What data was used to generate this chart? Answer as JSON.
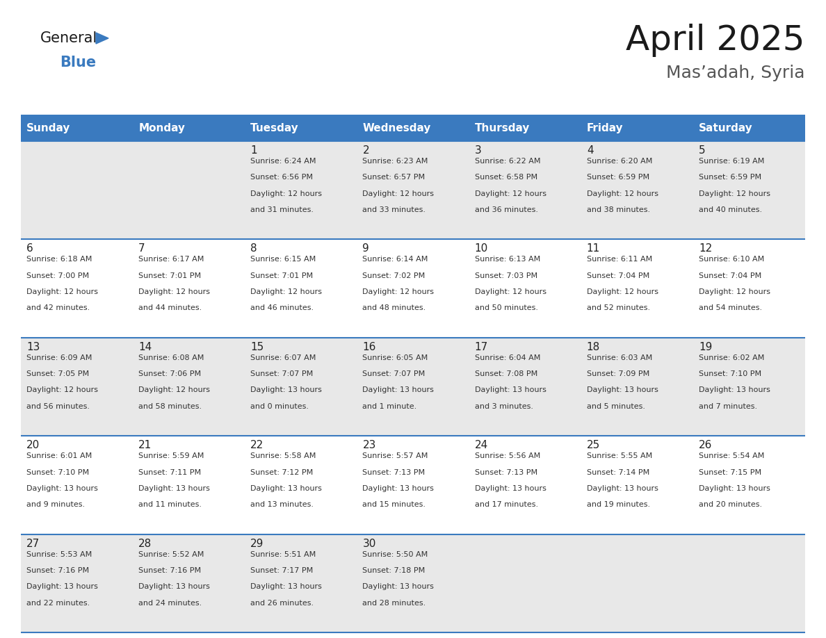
{
  "title": "April 2025",
  "subtitle": "Mas’adah, Syria",
  "header_bg_color": "#3a7abf",
  "header_text_color": "#ffffff",
  "row_bg_even": "#e8e8e8",
  "row_bg_odd": "#ffffff",
  "border_color": "#3a7abf",
  "day_names": [
    "Sunday",
    "Monday",
    "Tuesday",
    "Wednesday",
    "Thursday",
    "Friday",
    "Saturday"
  ],
  "days": [
    {
      "day": 1,
      "col": 2,
      "row": 0,
      "sunrise": "6:24 AM",
      "sunset": "6:56 PM",
      "daylight": "12 hours and 31 minutes."
    },
    {
      "day": 2,
      "col": 3,
      "row": 0,
      "sunrise": "6:23 AM",
      "sunset": "6:57 PM",
      "daylight": "12 hours and 33 minutes."
    },
    {
      "day": 3,
      "col": 4,
      "row": 0,
      "sunrise": "6:22 AM",
      "sunset": "6:58 PM",
      "daylight": "12 hours and 36 minutes."
    },
    {
      "day": 4,
      "col": 5,
      "row": 0,
      "sunrise": "6:20 AM",
      "sunset": "6:59 PM",
      "daylight": "12 hours and 38 minutes."
    },
    {
      "day": 5,
      "col": 6,
      "row": 0,
      "sunrise": "6:19 AM",
      "sunset": "6:59 PM",
      "daylight": "12 hours and 40 minutes."
    },
    {
      "day": 6,
      "col": 0,
      "row": 1,
      "sunrise": "6:18 AM",
      "sunset": "7:00 PM",
      "daylight": "12 hours and 42 minutes."
    },
    {
      "day": 7,
      "col": 1,
      "row": 1,
      "sunrise": "6:17 AM",
      "sunset": "7:01 PM",
      "daylight": "12 hours and 44 minutes."
    },
    {
      "day": 8,
      "col": 2,
      "row": 1,
      "sunrise": "6:15 AM",
      "sunset": "7:01 PM",
      "daylight": "12 hours and 46 minutes."
    },
    {
      "day": 9,
      "col": 3,
      "row": 1,
      "sunrise": "6:14 AM",
      "sunset": "7:02 PM",
      "daylight": "12 hours and 48 minutes."
    },
    {
      "day": 10,
      "col": 4,
      "row": 1,
      "sunrise": "6:13 AM",
      "sunset": "7:03 PM",
      "daylight": "12 hours and 50 minutes."
    },
    {
      "day": 11,
      "col": 5,
      "row": 1,
      "sunrise": "6:11 AM",
      "sunset": "7:04 PM",
      "daylight": "12 hours and 52 minutes."
    },
    {
      "day": 12,
      "col": 6,
      "row": 1,
      "sunrise": "6:10 AM",
      "sunset": "7:04 PM",
      "daylight": "12 hours and 54 minutes."
    },
    {
      "day": 13,
      "col": 0,
      "row": 2,
      "sunrise": "6:09 AM",
      "sunset": "7:05 PM",
      "daylight": "12 hours and 56 minutes."
    },
    {
      "day": 14,
      "col": 1,
      "row": 2,
      "sunrise": "6:08 AM",
      "sunset": "7:06 PM",
      "daylight": "12 hours and 58 minutes."
    },
    {
      "day": 15,
      "col": 2,
      "row": 2,
      "sunrise": "6:07 AM",
      "sunset": "7:07 PM",
      "daylight": "13 hours and 0 minutes."
    },
    {
      "day": 16,
      "col": 3,
      "row": 2,
      "sunrise": "6:05 AM",
      "sunset": "7:07 PM",
      "daylight": "13 hours and 1 minute."
    },
    {
      "day": 17,
      "col": 4,
      "row": 2,
      "sunrise": "6:04 AM",
      "sunset": "7:08 PM",
      "daylight": "13 hours and 3 minutes."
    },
    {
      "day": 18,
      "col": 5,
      "row": 2,
      "sunrise": "6:03 AM",
      "sunset": "7:09 PM",
      "daylight": "13 hours and 5 minutes."
    },
    {
      "day": 19,
      "col": 6,
      "row": 2,
      "sunrise": "6:02 AM",
      "sunset": "7:10 PM",
      "daylight": "13 hours and 7 minutes."
    },
    {
      "day": 20,
      "col": 0,
      "row": 3,
      "sunrise": "6:01 AM",
      "sunset": "7:10 PM",
      "daylight": "13 hours and 9 minutes."
    },
    {
      "day": 21,
      "col": 1,
      "row": 3,
      "sunrise": "5:59 AM",
      "sunset": "7:11 PM",
      "daylight": "13 hours and 11 minutes."
    },
    {
      "day": 22,
      "col": 2,
      "row": 3,
      "sunrise": "5:58 AM",
      "sunset": "7:12 PM",
      "daylight": "13 hours and 13 minutes."
    },
    {
      "day": 23,
      "col": 3,
      "row": 3,
      "sunrise": "5:57 AM",
      "sunset": "7:13 PM",
      "daylight": "13 hours and 15 minutes."
    },
    {
      "day": 24,
      "col": 4,
      "row": 3,
      "sunrise": "5:56 AM",
      "sunset": "7:13 PM",
      "daylight": "13 hours and 17 minutes."
    },
    {
      "day": 25,
      "col": 5,
      "row": 3,
      "sunrise": "5:55 AM",
      "sunset": "7:14 PM",
      "daylight": "13 hours and 19 minutes."
    },
    {
      "day": 26,
      "col": 6,
      "row": 3,
      "sunrise": "5:54 AM",
      "sunset": "7:15 PM",
      "daylight": "13 hours and 20 minutes."
    },
    {
      "day": 27,
      "col": 0,
      "row": 4,
      "sunrise": "5:53 AM",
      "sunset": "7:16 PM",
      "daylight": "13 hours and 22 minutes."
    },
    {
      "day": 28,
      "col": 1,
      "row": 4,
      "sunrise": "5:52 AM",
      "sunset": "7:16 PM",
      "daylight": "13 hours and 24 minutes."
    },
    {
      "day": 29,
      "col": 2,
      "row": 4,
      "sunrise": "5:51 AM",
      "sunset": "7:17 PM",
      "daylight": "13 hours and 26 minutes."
    },
    {
      "day": 30,
      "col": 3,
      "row": 4,
      "sunrise": "5:50 AM",
      "sunset": "7:18 PM",
      "daylight": "13 hours and 28 minutes."
    }
  ],
  "logo_text_general": "General",
  "logo_text_blue": "Blue",
  "logo_color_general": "#1a1a1a",
  "logo_color_blue": "#3a7abf",
  "logo_triangle_color": "#3a7abf",
  "title_fontsize": 36,
  "subtitle_fontsize": 18,
  "header_fontsize": 11,
  "day_num_fontsize": 11,
  "info_fontsize": 8
}
